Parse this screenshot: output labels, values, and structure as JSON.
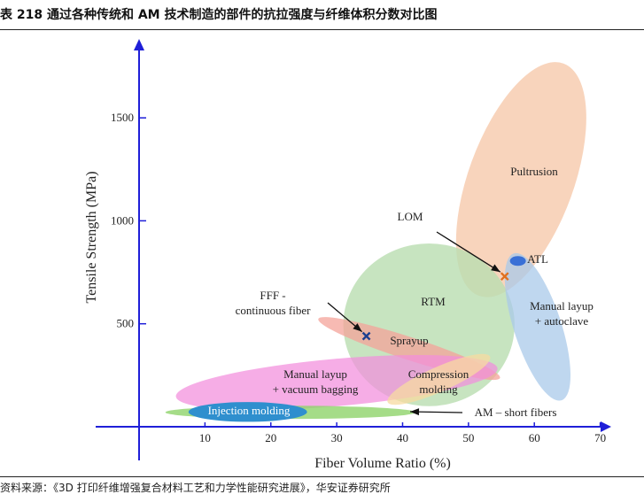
{
  "header": {
    "title": "表 218 通过各种传统和 AM 技术制造的部件的抗拉强度与纤维体积分数对比图"
  },
  "footer": {
    "source": "资料来源：《3D 打印纤维增强复合材料工艺和力学性能研究进展》，华安证券研究所"
  },
  "colors": {
    "axis": "#1f1fd8",
    "pultrusion": "#f5c6a5",
    "rtm": "#b9ddb0",
    "atl_autoclave": "#a9c9ea",
    "sprayup": "#f4a39a",
    "manual_vacuum": "#f28ddc",
    "compression": "#f7dba0",
    "am_short": "#8fd36a",
    "injection": "#2f8fce",
    "atl_marker": "#3a70d6",
    "lom_marker": "#e0701e",
    "fff_marker": "#1c3f8f"
  },
  "chart_data": {
    "type": "scatter",
    "xlabel": "Fiber Volume Ratio (%)",
    "ylabel": "Tensile Strength (MPa)",
    "xlim": [
      0,
      70
    ],
    "ylim": [
      0,
      1850
    ],
    "xticks": [
      10,
      20,
      30,
      40,
      50,
      60,
      70
    ],
    "yticks": [
      500,
      1000,
      1500
    ],
    "grid": false,
    "regions": [
      {
        "label": "Pultrusion",
        "cx": 58,
        "cy": 1200,
        "rx": 8,
        "ry": 600,
        "rotate": 20,
        "color": "pultrusion",
        "opacity": 0.75
      },
      {
        "label": "RTM",
        "cx": 44,
        "cy": 495,
        "rx": 13,
        "ry": 395,
        "rotate": 0,
        "color": "rtm",
        "opacity": 0.8
      },
      {
        "label": "Manual layup\n+ autoclave",
        "cx": 60.5,
        "cy": 485,
        "rx": 3.6,
        "ry": 375,
        "rotate": -18,
        "color": "atl_autoclave",
        "opacity": 0.75
      },
      {
        "label": "Sprayup",
        "cx": 41,
        "cy": 380,
        "rx": 14.5,
        "ry": 55,
        "rotate": 18,
        "color": "sprayup",
        "opacity": 0.75
      },
      {
        "label": "Manual layup\n+ vacuum bagging",
        "cx": 30,
        "cy": 215,
        "rx": 24.5,
        "ry": 115,
        "rotate": -5,
        "color": "manual_vacuum",
        "opacity": 0.72
      },
      {
        "label": "Compression\nmolding",
        "cx": 45.5,
        "cy": 230,
        "rx": 8.5,
        "ry": 60,
        "rotate": -24,
        "color": "compression",
        "opacity": 0.75
      },
      {
        "label": "AM – short fibers",
        "cx": 23,
        "cy": 70,
        "rx": 19,
        "ry": 32,
        "rotate": 0,
        "color": "am_short",
        "opacity": 0.8
      },
      {
        "label": "Injection  molding",
        "cx": 16.5,
        "cy": 72,
        "rx": 9,
        "ry": 48,
        "rotate": 0,
        "color": "injection",
        "opacity": 1.0
      }
    ],
    "points": [
      {
        "label": "ATL",
        "x": 57.5,
        "y": 805,
        "marker": "ellipse",
        "color": "atl_marker"
      },
      {
        "label": "LOM",
        "x": 55.5,
        "y": 730,
        "marker": "x",
        "color": "lom_marker"
      },
      {
        "label": "FFF -\ncontinuous fiber",
        "x": 34.5,
        "y": 440,
        "marker": "x",
        "color": "fff_marker"
      }
    ]
  }
}
